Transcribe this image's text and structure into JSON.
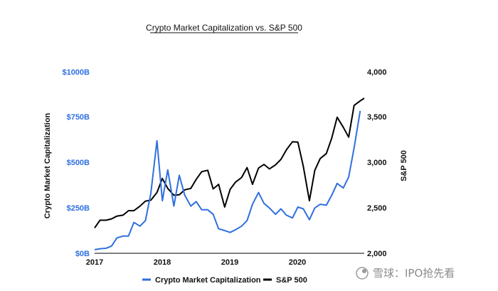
{
  "chart_data": {
    "type": "line",
    "title": "Crypto Market Capitalization vs. S&P 500",
    "xlabel": "",
    "x_ticks": [
      "2017",
      "2018",
      "2019",
      "2020"
    ],
    "y_left": {
      "label": "Crypto Market Capitalization",
      "ticks": [
        "$0B",
        "$250B",
        "$500B",
        "$750B",
        "$1000B"
      ],
      "range": [
        0,
        1000
      ],
      "color": "#2f6fe0"
    },
    "y_right": {
      "label": "S&P 500",
      "ticks": [
        "2,000",
        "2,500",
        "3,000",
        "3,500",
        "4,000"
      ],
      "range": [
        2000,
        4000
      ],
      "color": "#000000"
    },
    "x_range": [
      2017.0,
      2020.98
    ],
    "series": [
      {
        "name": "Crypto Market Capitalization",
        "axis": "left",
        "color": "#2f6fe0",
        "x": [
          2017.0,
          2017.08,
          2017.17,
          2017.25,
          2017.33,
          2017.42,
          2017.5,
          2017.58,
          2017.67,
          2017.75,
          2017.83,
          2017.92,
          2018.0,
          2018.08,
          2018.17,
          2018.25,
          2018.33,
          2018.42,
          2018.5,
          2018.58,
          2018.67,
          2018.75,
          2018.83,
          2018.92,
          2019.0,
          2019.08,
          2019.17,
          2019.25,
          2019.33,
          2019.42,
          2019.5,
          2019.58,
          2019.67,
          2019.75,
          2019.83,
          2019.92,
          2020.0,
          2020.08,
          2020.17,
          2020.25,
          2020.33,
          2020.42,
          2020.5,
          2020.58,
          2020.67,
          2020.75,
          2020.83,
          2020.92
        ],
        "values": [
          20,
          25,
          28,
          40,
          85,
          95,
          95,
          170,
          150,
          180,
          330,
          620,
          290,
          460,
          260,
          430,
          320,
          260,
          285,
          240,
          240,
          215,
          135,
          125,
          115,
          130,
          150,
          180,
          270,
          335,
          275,
          250,
          215,
          245,
          210,
          195,
          255,
          245,
          185,
          250,
          270,
          265,
          320,
          385,
          360,
          420,
          580,
          785
        ]
      },
      {
        "name": "S&P 500",
        "axis": "right",
        "color": "#000000",
        "x": [
          2017.0,
          2017.08,
          2017.17,
          2017.25,
          2017.33,
          2017.42,
          2017.5,
          2017.58,
          2017.67,
          2017.75,
          2017.83,
          2017.92,
          2018.0,
          2018.08,
          2018.17,
          2018.25,
          2018.33,
          2018.42,
          2018.5,
          2018.58,
          2018.67,
          2018.75,
          2018.83,
          2018.92,
          2019.0,
          2019.08,
          2019.17,
          2019.25,
          2019.33,
          2019.42,
          2019.5,
          2019.58,
          2019.67,
          2019.75,
          2019.83,
          2019.92,
          2020.0,
          2020.08,
          2020.17,
          2020.25,
          2020.33,
          2020.42,
          2020.5,
          2020.58,
          2020.67,
          2020.75,
          2020.83,
          2020.92,
          2020.98
        ],
        "values": [
          2280,
          2365,
          2365,
          2380,
          2410,
          2420,
          2470,
          2470,
          2520,
          2575,
          2585,
          2670,
          2825,
          2715,
          2640,
          2645,
          2700,
          2715,
          2815,
          2900,
          2915,
          2710,
          2760,
          2510,
          2705,
          2785,
          2835,
          2945,
          2760,
          2940,
          2980,
          2930,
          2975,
          3035,
          3140,
          3230,
          3225,
          2960,
          2580,
          2915,
          3045,
          3100,
          3270,
          3500,
          3390,
          3280,
          3630,
          3680,
          3710
        ]
      }
    ],
    "legend": {
      "position": "bottom",
      "entries": [
        "Crypto Market Capitalization",
        "S&P 500"
      ]
    }
  },
  "watermark": {
    "text": "雪球：IPO抢先看"
  }
}
